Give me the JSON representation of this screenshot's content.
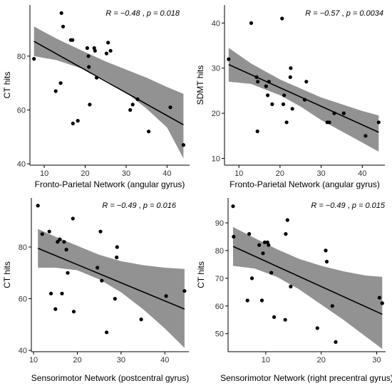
{
  "figure": {
    "panels": [
      {
        "stat_r": "R = −0.48",
        "stat_sep": " , ",
        "stat_p": "p = 0.018"
      },
      {
        "stat_r": "R = −0.57",
        "stat_sep": " , ",
        "stat_p": "p = 0.0034"
      },
      {
        "stat_r": "R = −0.49",
        "stat_sep": " , ",
        "stat_p": "p = 0.016"
      },
      {
        "stat_r": "R = −0.49",
        "stat_sep": " , ",
        "stat_p": "p = 0.015"
      }
    ]
  },
  "chart_data": [
    {
      "type": "scatter",
      "xlabel": "Fronto-Parietal Network (angular gyrus)",
      "ylabel": "CT hits",
      "xticks": [
        10,
        20,
        30,
        40
      ],
      "yticks": [
        40,
        60,
        80
      ],
      "xlim": [
        6.5,
        45.5
      ],
      "ylim": [
        39.5,
        99
      ],
      "annotation": "R = −0.48 , p = 0.018",
      "points": [
        [
          7.5,
          79
        ],
        [
          12.8,
          67
        ],
        [
          14,
          70
        ],
        [
          14.2,
          96
        ],
        [
          14.6,
          91
        ],
        [
          16.5,
          86
        ],
        [
          16.9,
          86
        ],
        [
          17,
          55
        ],
        [
          18.2,
          56
        ],
        [
          20.5,
          83
        ],
        [
          20.8,
          80
        ],
        [
          20.9,
          76
        ],
        [
          21.1,
          62
        ],
        [
          22.2,
          83
        ],
        [
          22.4,
          82
        ],
        [
          22.8,
          72
        ],
        [
          25.2,
          81
        ],
        [
          25.6,
          85
        ],
        [
          26.2,
          82
        ],
        [
          31,
          60
        ],
        [
          31.6,
          62
        ],
        [
          32.8,
          64
        ],
        [
          35.5,
          52
        ],
        [
          40.8,
          61
        ],
        [
          44,
          47
        ]
      ],
      "fit": {
        "x": [
          7.5,
          44
        ],
        "y": [
          85.5,
          54.5
        ]
      },
      "ci_upper": {
        "x": [
          7.5,
          13,
          20,
          25,
          30,
          35,
          40,
          44
        ],
        "y": [
          91,
          86.5,
          81.5,
          78,
          75,
          72,
          68.5,
          66
        ]
      },
      "ci_lower": {
        "x": [
          7.5,
          13,
          20,
          25,
          30,
          35,
          40,
          44
        ],
        "y": [
          80,
          78.5,
          75,
          71,
          66.5,
          60.5,
          53.5,
          42
        ]
      },
      "grid": false
    },
    {
      "type": "scatter",
      "xlabel": "Fronto-Parietal Network (angular gyrus)",
      "ylabel": "SDMT hits",
      "xticks": [
        10,
        20,
        30,
        40
      ],
      "yticks": [
        10,
        20,
        30,
        40
      ],
      "xlim": [
        6.5,
        45.5
      ],
      "ylim": [
        8.5,
        44
      ],
      "annotation": "R = −0.57 , p = 0.0034",
      "points": [
        [
          7.5,
          32
        ],
        [
          13,
          40
        ],
        [
          14.3,
          28
        ],
        [
          14.5,
          16
        ],
        [
          14.6,
          27
        ],
        [
          16.6,
          26
        ],
        [
          17,
          24
        ],
        [
          17.3,
          27
        ],
        [
          18.1,
          22
        ],
        [
          20.5,
          41
        ],
        [
          20.8,
          22
        ],
        [
          21,
          24
        ],
        [
          21.6,
          18
        ],
        [
          22.5,
          28
        ],
        [
          22.6,
          30
        ],
        [
          23,
          21
        ],
        [
          26,
          23
        ],
        [
          26.4,
          27
        ],
        [
          31.5,
          18
        ],
        [
          32,
          18
        ],
        [
          33.2,
          20
        ],
        [
          35.5,
          20
        ],
        [
          40.8,
          15
        ],
        [
          44,
          18
        ]
      ],
      "fit": {
        "x": [
          7.5,
          44
        ],
        "y": [
          30.8,
          15.8
        ]
      },
      "ci_upper": {
        "x": [
          7.5,
          13,
          20,
          25,
          30,
          35,
          40,
          44
        ],
        "y": [
          34.5,
          31,
          27.5,
          25.5,
          23.5,
          22,
          20.5,
          19.5
        ]
      },
      "ci_lower": {
        "x": [
          7.5,
          13,
          20,
          25,
          30,
          35,
          40,
          44
        ],
        "y": [
          27,
          26.5,
          24,
          21.5,
          18.5,
          16,
          13.5,
          11.5
        ]
      },
      "grid": false
    },
    {
      "type": "scatter",
      "xlabel": "Sensorimotor Network (postcentral gyrus)",
      "ylabel": "CT hits",
      "xticks": [
        10,
        20,
        30,
        40
      ],
      "yticks": [
        40,
        60,
        80
      ],
      "xlim": [
        9.5,
        45.5
      ],
      "ylim": [
        39.5,
        99
      ],
      "annotation": "R = −0.49 , p = 0.016",
      "points": [
        [
          11,
          96
        ],
        [
          12,
          85
        ],
        [
          13.6,
          86
        ],
        [
          14,
          62
        ],
        [
          15,
          56
        ],
        [
          15.5,
          82
        ],
        [
          16,
          83
        ],
        [
          16.5,
          62
        ],
        [
          17,
          82
        ],
        [
          17.5,
          79
        ],
        [
          17.8,
          70
        ],
        [
          19,
          91
        ],
        [
          19.2,
          55
        ],
        [
          24.6,
          72
        ],
        [
          25.3,
          86
        ],
        [
          25.6,
          67
        ],
        [
          26.7,
          47
        ],
        [
          28.6,
          60
        ],
        [
          29,
          76
        ],
        [
          29.1,
          80
        ],
        [
          34.6,
          52
        ],
        [
          40.3,
          61
        ],
        [
          44.5,
          63
        ]
      ],
      "fit": {
        "x": [
          11,
          44.5
        ],
        "y": [
          79.5,
          56
        ]
      },
      "ci_upper": {
        "x": [
          11,
          15,
          20,
          25,
          30,
          35,
          40,
          44.5
        ],
        "y": [
          87,
          84,
          80.5,
          77,
          74.5,
          73,
          72,
          71.5
        ]
      },
      "ci_lower": {
        "x": [
          11,
          15,
          20,
          25,
          30,
          35,
          40,
          44.5
        ],
        "y": [
          72,
          72,
          71,
          67.5,
          62.5,
          56,
          48.5,
          41
        ]
      },
      "grid": false
    },
    {
      "type": "scatter",
      "xlabel": "Sensorimotor Network (right precentral gyrus)",
      "ylabel": "CT hits",
      "xticks": [
        10,
        20,
        30
      ],
      "yticks": [
        50,
        60,
        70,
        80,
        90
      ],
      "xlim": [
        3.2,
        31.6
      ],
      "ylim": [
        43.5,
        99
      ],
      "annotation": "R = −0.49 , p = 0.015",
      "points": [
        [
          4.1,
          96
        ],
        [
          4.2,
          85
        ],
        [
          6.7,
          62
        ],
        [
          7,
          86
        ],
        [
          7.5,
          70
        ],
        [
          8.8,
          82
        ],
        [
          9.3,
          62
        ],
        [
          9.5,
          79
        ],
        [
          9.8,
          83
        ],
        [
          10.3,
          83
        ],
        [
          10.5,
          82
        ],
        [
          11,
          72
        ],
        [
          11.5,
          56
        ],
        [
          13.5,
          55
        ],
        [
          13.6,
          86
        ],
        [
          13.9,
          91
        ],
        [
          14.5,
          67
        ],
        [
          19.3,
          52
        ],
        [
          20.8,
          80
        ],
        [
          21,
          76
        ],
        [
          22,
          60
        ],
        [
          22.6,
          47
        ],
        [
          30.5,
          63
        ],
        [
          31,
          61
        ]
      ],
      "fit": {
        "x": [
          4.1,
          31
        ],
        "y": [
          81.5,
          57
        ]
      },
      "ci_upper": {
        "x": [
          4.1,
          8,
          12,
          16,
          20,
          24,
          28,
          31
        ],
        "y": [
          88.5,
          84.5,
          80.5,
          77,
          74.5,
          72.5,
          71,
          70.5
        ]
      },
      "ci_lower": {
        "x": [
          4.1,
          8,
          12,
          16,
          20,
          24,
          28,
          31
        ],
        "y": [
          74.5,
          73.5,
          70.5,
          66,
          60.5,
          55,
          49,
          44.5
        ]
      },
      "grid": false
    }
  ]
}
